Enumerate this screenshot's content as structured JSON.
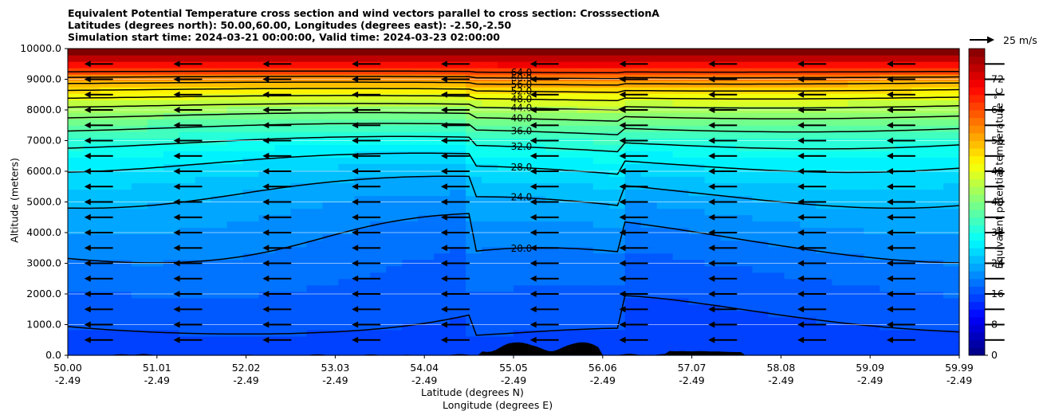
{
  "chart_data": {
    "type": "contour",
    "title_lines": [
      "Equivalent Potential Temperature cross section and wind vectors parallel to cross section: CrosssectionA",
      "Latitudes (degrees north): 50.00,60.00, Longitudes (degrees east): -2.50,-2.50",
      "Simulation start time: 2024-03-21 00:00:00, Valid time: 2024-03-23 02:00:00"
    ],
    "ylabel": "Altitude (meters)",
    "xlabel_lat": "Latitude (degrees N)",
    "xlabel_lon": "Longitude (degrees E)",
    "y_ticks": [
      "0.0",
      "1000.0",
      "2000.0",
      "3000.0",
      "4000.0",
      "5000.0",
      "6000.0",
      "7000.0",
      "8000.0",
      "9000.0",
      "10000.0"
    ],
    "ylim": [
      0,
      10000
    ],
    "x_ticks_lat": [
      "50.00",
      "51.01",
      "52.02",
      "53.03",
      "54.04",
      "55.05",
      "56.06",
      "57.07",
      "58.08",
      "59.09",
      "59.99"
    ],
    "x_ticks_lon": [
      "-2.49",
      "-2.49",
      "-2.49",
      "-2.49",
      "-2.49",
      "-2.49",
      "-2.49",
      "-2.49",
      "-2.49",
      "-2.49",
      "-2.49"
    ],
    "colorbar": {
      "label": "Equivalent potential temperature $^\\circ$C",
      "label_text": "Equivalent potential temperature ˚C",
      "ticks": [
        "0",
        "8",
        "16",
        "24",
        "32",
        "40",
        "48",
        "56",
        "64",
        "72"
      ],
      "range": [
        0,
        80
      ]
    },
    "contour_levels": [
      16,
      20,
      24,
      28,
      32,
      36,
      40,
      44,
      48,
      52,
      56,
      60,
      64
    ],
    "contour_labels": [
      {
        "label": "20.0"
      },
      {
        "label": "24.0"
      },
      {
        "label": "28.0"
      },
      {
        "label": "32.0"
      },
      {
        "label": "36.0"
      },
      {
        "label": "40.0"
      },
      {
        "label": "44.0"
      },
      {
        "label": "48.0"
      },
      {
        "label": "52.0"
      },
      {
        "label": "56.0"
      },
      {
        "label": "60.0"
      },
      {
        "label": "64.0"
      }
    ],
    "wind_vectors": {
      "direction": "toward lower latitude",
      "typical_speed_ms": 25,
      "grid_levels_m": [
        500,
        1000,
        1500,
        2000,
        2500,
        3000,
        3500,
        4000,
        4500,
        5000,
        5500,
        6000,
        6500,
        7000,
        7500,
        8000,
        8500,
        9000,
        9500
      ]
    },
    "quiver_key": "25 m/s",
    "grid": true
  }
}
